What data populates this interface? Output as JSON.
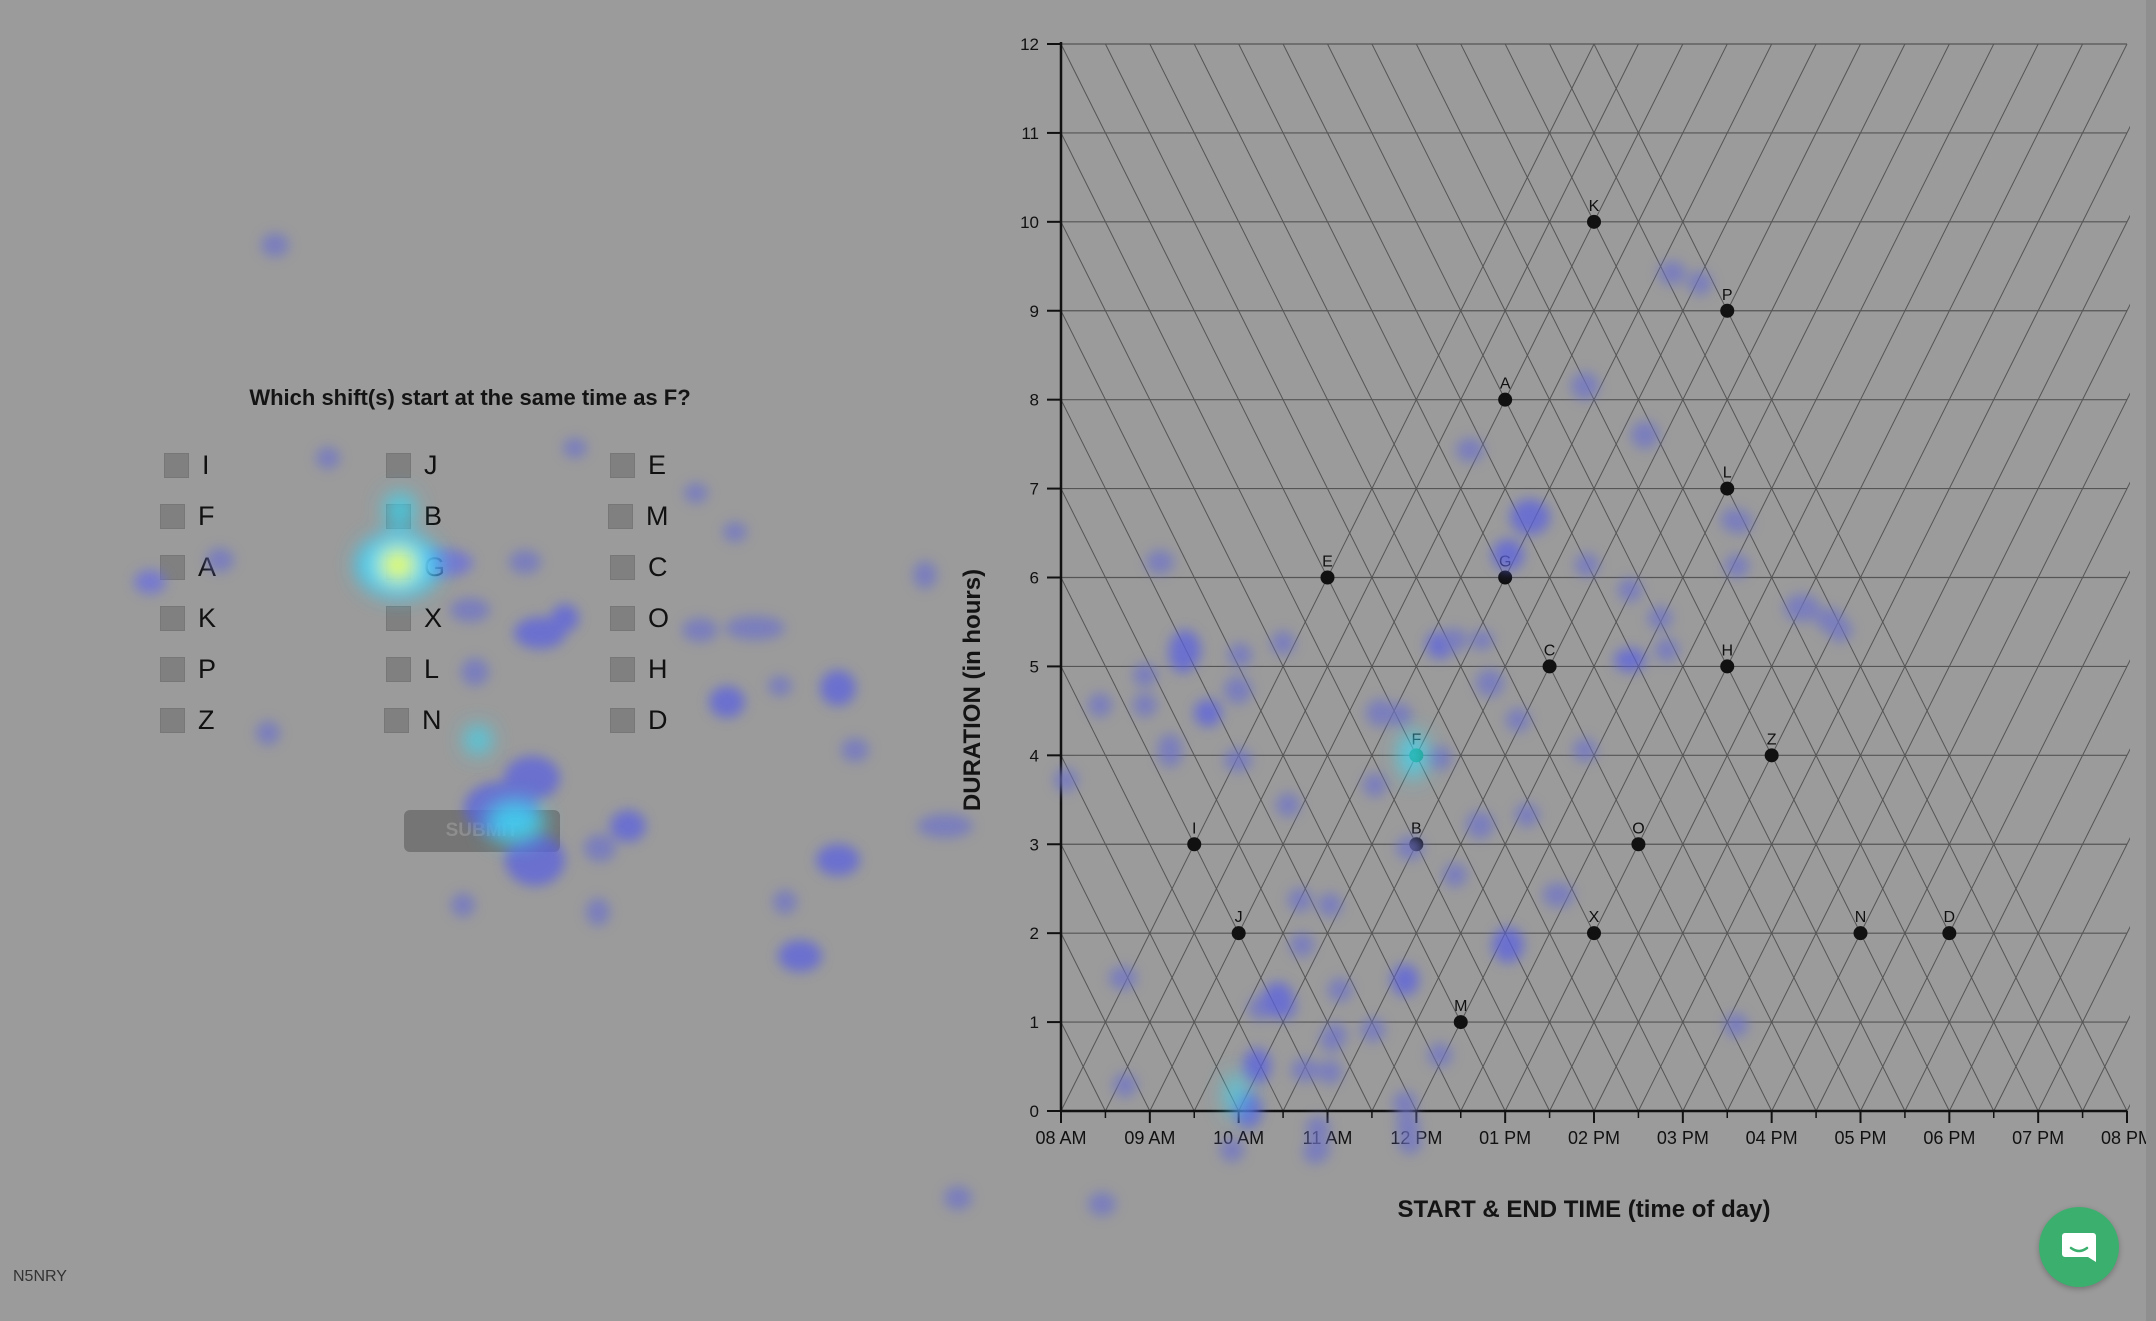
{
  "question": {
    "text": "Which shift(s) start at the same time as F?",
    "options": [
      {
        "label": "I"
      },
      {
        "label": "F"
      },
      {
        "label": "A"
      },
      {
        "label": "K"
      },
      {
        "label": "P"
      },
      {
        "label": "Z"
      },
      {
        "label": "J"
      },
      {
        "label": "B"
      },
      {
        "label": "G"
      },
      {
        "label": "X"
      },
      {
        "label": "L"
      },
      {
        "label": "N"
      },
      {
        "label": "E"
      },
      {
        "label": "M"
      },
      {
        "label": "C"
      },
      {
        "label": "O"
      },
      {
        "label": "H"
      },
      {
        "label": "D"
      }
    ],
    "submit_label": "SUBMIT"
  },
  "participant_code": "N5NRY",
  "chat_icon": "chat-bubble-icon",
  "colors": {
    "background": "#9b9b9b",
    "grid": "#555555",
    "point": "#111111",
    "highlight_point": "#0a7a4a",
    "chat_button": "#3bb06e"
  },
  "chart_data": {
    "type": "scatter",
    "variant": "triangular-model",
    "xlabel": "START & END TIME (time of day)",
    "ylabel": "DURATION (in hours)",
    "x_ticks": [
      "08 AM",
      "09 AM",
      "10 AM",
      "11 AM",
      "12 PM",
      "01 PM",
      "02 PM",
      "03 PM",
      "04 PM",
      "05 PM",
      "06 PM",
      "07 PM",
      "08 PM"
    ],
    "x_range": [
      8,
      20
    ],
    "y_ticks": [
      "0",
      "1",
      "2",
      "3",
      "4",
      "5",
      "6",
      "7",
      "8",
      "9",
      "10",
      "11",
      "12"
    ],
    "ylim": [
      0,
      12
    ],
    "grid": true,
    "points": [
      {
        "label": "K",
        "x": 14,
        "y": 10
      },
      {
        "label": "P",
        "x": 15.5,
        "y": 9
      },
      {
        "label": "A",
        "x": 13,
        "y": 8
      },
      {
        "label": "L",
        "x": 15.5,
        "y": 7
      },
      {
        "label": "E",
        "x": 11,
        "y": 6
      },
      {
        "label": "G",
        "x": 13,
        "y": 6
      },
      {
        "label": "C",
        "x": 13.5,
        "y": 5
      },
      {
        "label": "H",
        "x": 15.5,
        "y": 5
      },
      {
        "label": "F",
        "x": 12,
        "y": 4,
        "highlight": true
      },
      {
        "label": "Z",
        "x": 16,
        "y": 4
      },
      {
        "label": "I",
        "x": 9.5,
        "y": 3
      },
      {
        "label": "B",
        "x": 12,
        "y": 3
      },
      {
        "label": "O",
        "x": 14.5,
        "y": 3
      },
      {
        "label": "J",
        "x": 10,
        "y": 2
      },
      {
        "label": "X",
        "x": 14,
        "y": 2
      },
      {
        "label": "N",
        "x": 17,
        "y": 2
      },
      {
        "label": "D",
        "x": 18,
        "y": 2
      },
      {
        "label": "M",
        "x": 12.5,
        "y": 1
      }
    ]
  }
}
